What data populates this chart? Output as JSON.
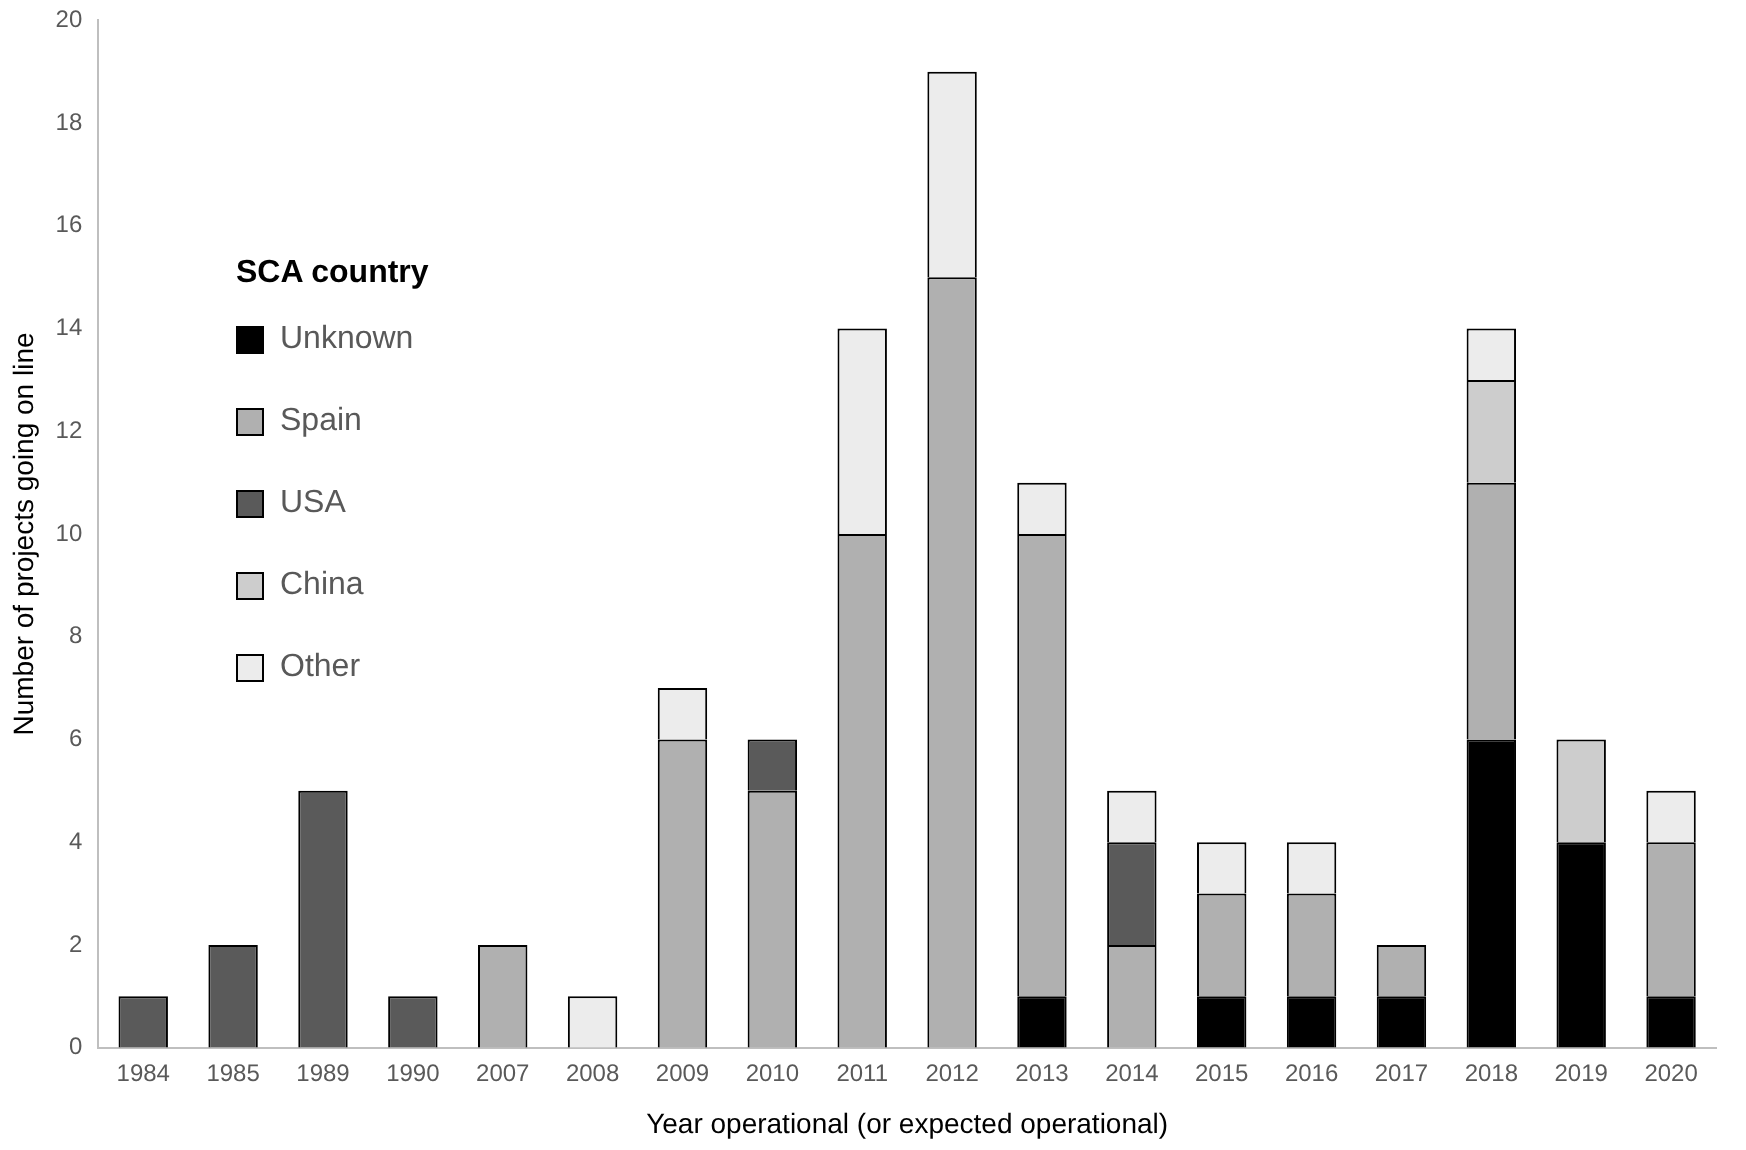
{
  "chart_data": {
    "type": "bar",
    "stacked": true,
    "xlabel": "Year operational (or expected operational)",
    "ylabel": "Number of projects going on line",
    "legend_title": "SCA country",
    "legend": "top left",
    "grid": false,
    "categories": [
      "1984",
      "1985",
      "1989",
      "1990",
      "2007",
      "2008",
      "2009",
      "2010",
      "2011",
      "2012",
      "2013",
      "2014",
      "2015",
      "2016",
      "2017",
      "2018",
      "2019",
      "2020"
    ],
    "ylim": [
      0,
      20
    ],
    "yticks": [
      0,
      2,
      4,
      6,
      8,
      10,
      12,
      14,
      16,
      18,
      20
    ],
    "series": [
      {
        "name": "Unknown",
        "color": "#000000",
        "values": [
          0,
          0,
          0,
          0,
          0,
          0,
          0,
          0,
          0,
          0,
          1,
          0,
          1,
          1,
          1,
          6,
          4,
          1
        ]
      },
      {
        "name": "Spain",
        "color": "#b0b0b0",
        "values": [
          0,
          0,
          0,
          0,
          2,
          0,
          6,
          5,
          10,
          15,
          9,
          2,
          2,
          2,
          1,
          5,
          0,
          3
        ]
      },
      {
        "name": "USA",
        "color": "#5a5a5a",
        "values": [
          1,
          2,
          5,
          1,
          0,
          0,
          0,
          1,
          0,
          0,
          0,
          2,
          0,
          0,
          0,
          0,
          0,
          0
        ]
      },
      {
        "name": "China",
        "color": "#cdcdcd",
        "values": [
          0,
          0,
          0,
          0,
          0,
          0,
          0,
          0,
          0,
          0,
          0,
          0,
          0,
          0,
          0,
          2,
          2,
          0
        ]
      },
      {
        "name": "Other",
        "color": "#ececec",
        "values": [
          0,
          0,
          0,
          0,
          0,
          1,
          1,
          0,
          4,
          4,
          1,
          1,
          1,
          1,
          0,
          1,
          0,
          1
        ]
      }
    ]
  }
}
